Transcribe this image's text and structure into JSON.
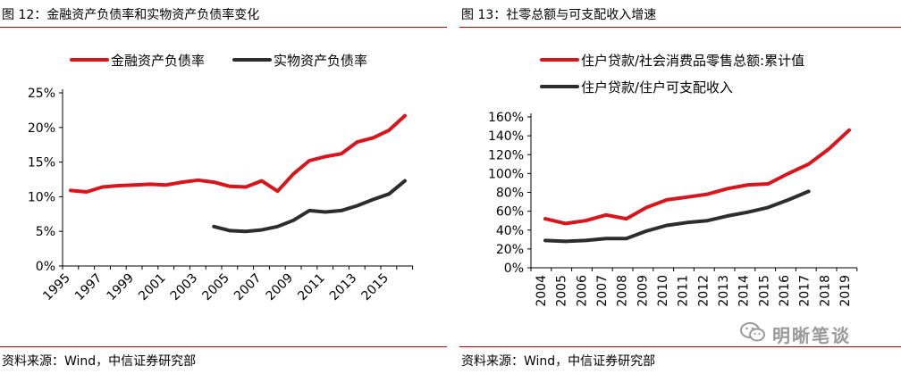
{
  "watermark": {
    "text": "明晰笔谈",
    "icon": "wechat-icon"
  },
  "colors": {
    "red": "#d9151b",
    "dark": "#2d2d2d",
    "rule": "#c00000"
  },
  "panels": {
    "left": {
      "title": "图 12：金融资产负债率和实物资产负债率变化",
      "source": "资料来源：Wind，中信证券研究部"
    },
    "right": {
      "title": "图 13：社零总额与可支配收入增速",
      "source": "资料来源：Wind，中信证券研究部"
    }
  },
  "chart_data": [
    {
      "type": "line",
      "title": "图 12：金融资产负债率和实物资产负债率变化",
      "xlabel": "",
      "ylabel": "",
      "x": [
        1995,
        1996,
        1997,
        1998,
        1999,
        2000,
        2001,
        2002,
        2003,
        2004,
        2005,
        2006,
        2007,
        2008,
        2009,
        2010,
        2011,
        2012,
        2013,
        2014,
        2015,
        2016
      ],
      "x_tick_labels": [
        "1995",
        "1997",
        "1999",
        "2001",
        "2003",
        "2005",
        "2007",
        "2009",
        "2011",
        "2013",
        "2015"
      ],
      "y_tick_labels": [
        "0%",
        "5%",
        "10%",
        "15%",
        "20%",
        "25%"
      ],
      "ylim": [
        0,
        25
      ],
      "y_unit": "%",
      "grid": false,
      "legend": "top-left",
      "series": [
        {
          "name": "金融资产负债率",
          "color": "#d9151b",
          "values": [
            10.9,
            10.7,
            11.4,
            11.6,
            11.7,
            11.8,
            11.7,
            12.1,
            12.4,
            12.1,
            11.5,
            11.4,
            12.3,
            10.8,
            13.3,
            15.2,
            15.8,
            16.2,
            17.9,
            18.5,
            19.6,
            21.7
          ]
        },
        {
          "name": "实物资产负债率",
          "color": "#2d2d2d",
          "values": [
            null,
            null,
            null,
            null,
            null,
            null,
            null,
            null,
            null,
            5.7,
            5.1,
            5.0,
            5.2,
            5.7,
            6.6,
            8.0,
            7.8,
            8.0,
            8.7,
            9.6,
            10.4,
            12.3
          ]
        }
      ]
    },
    {
      "type": "line",
      "title": "图 13：社零总额与可支配收入增速",
      "xlabel": "",
      "ylabel": "",
      "x": [
        2004,
        2005,
        2006,
        2007,
        2008,
        2009,
        2010,
        2011,
        2012,
        2013,
        2014,
        2015,
        2016,
        2017,
        2018,
        2019
      ],
      "x_tick_labels": [
        "2004",
        "2005",
        "2006",
        "2007",
        "2008",
        "2009",
        "2010",
        "2011",
        "2012",
        "2013",
        "2014",
        "2015",
        "2016",
        "2017",
        "2018",
        "2019"
      ],
      "y_tick_labels": [
        "0%",
        "20%",
        "40%",
        "60%",
        "80%",
        "100%",
        "120%",
        "140%",
        "160%"
      ],
      "ylim": [
        0,
        160
      ],
      "y_unit": "%",
      "grid": false,
      "legend": "top-left",
      "series": [
        {
          "name": "住户贷款/社会消费品零售总额:累计值",
          "color": "#d9151b",
          "values": [
            52,
            47,
            50,
            56,
            52,
            64,
            72,
            75,
            78,
            84,
            88,
            89,
            100,
            110,
            126,
            146
          ]
        },
        {
          "name": "住户贷款/住户可支配收入",
          "color": "#2d2d2d",
          "values": [
            29,
            28,
            29,
            31,
            31,
            39,
            45,
            48,
            50,
            55,
            59,
            64,
            72,
            81,
            null,
            null
          ]
        }
      ]
    }
  ]
}
